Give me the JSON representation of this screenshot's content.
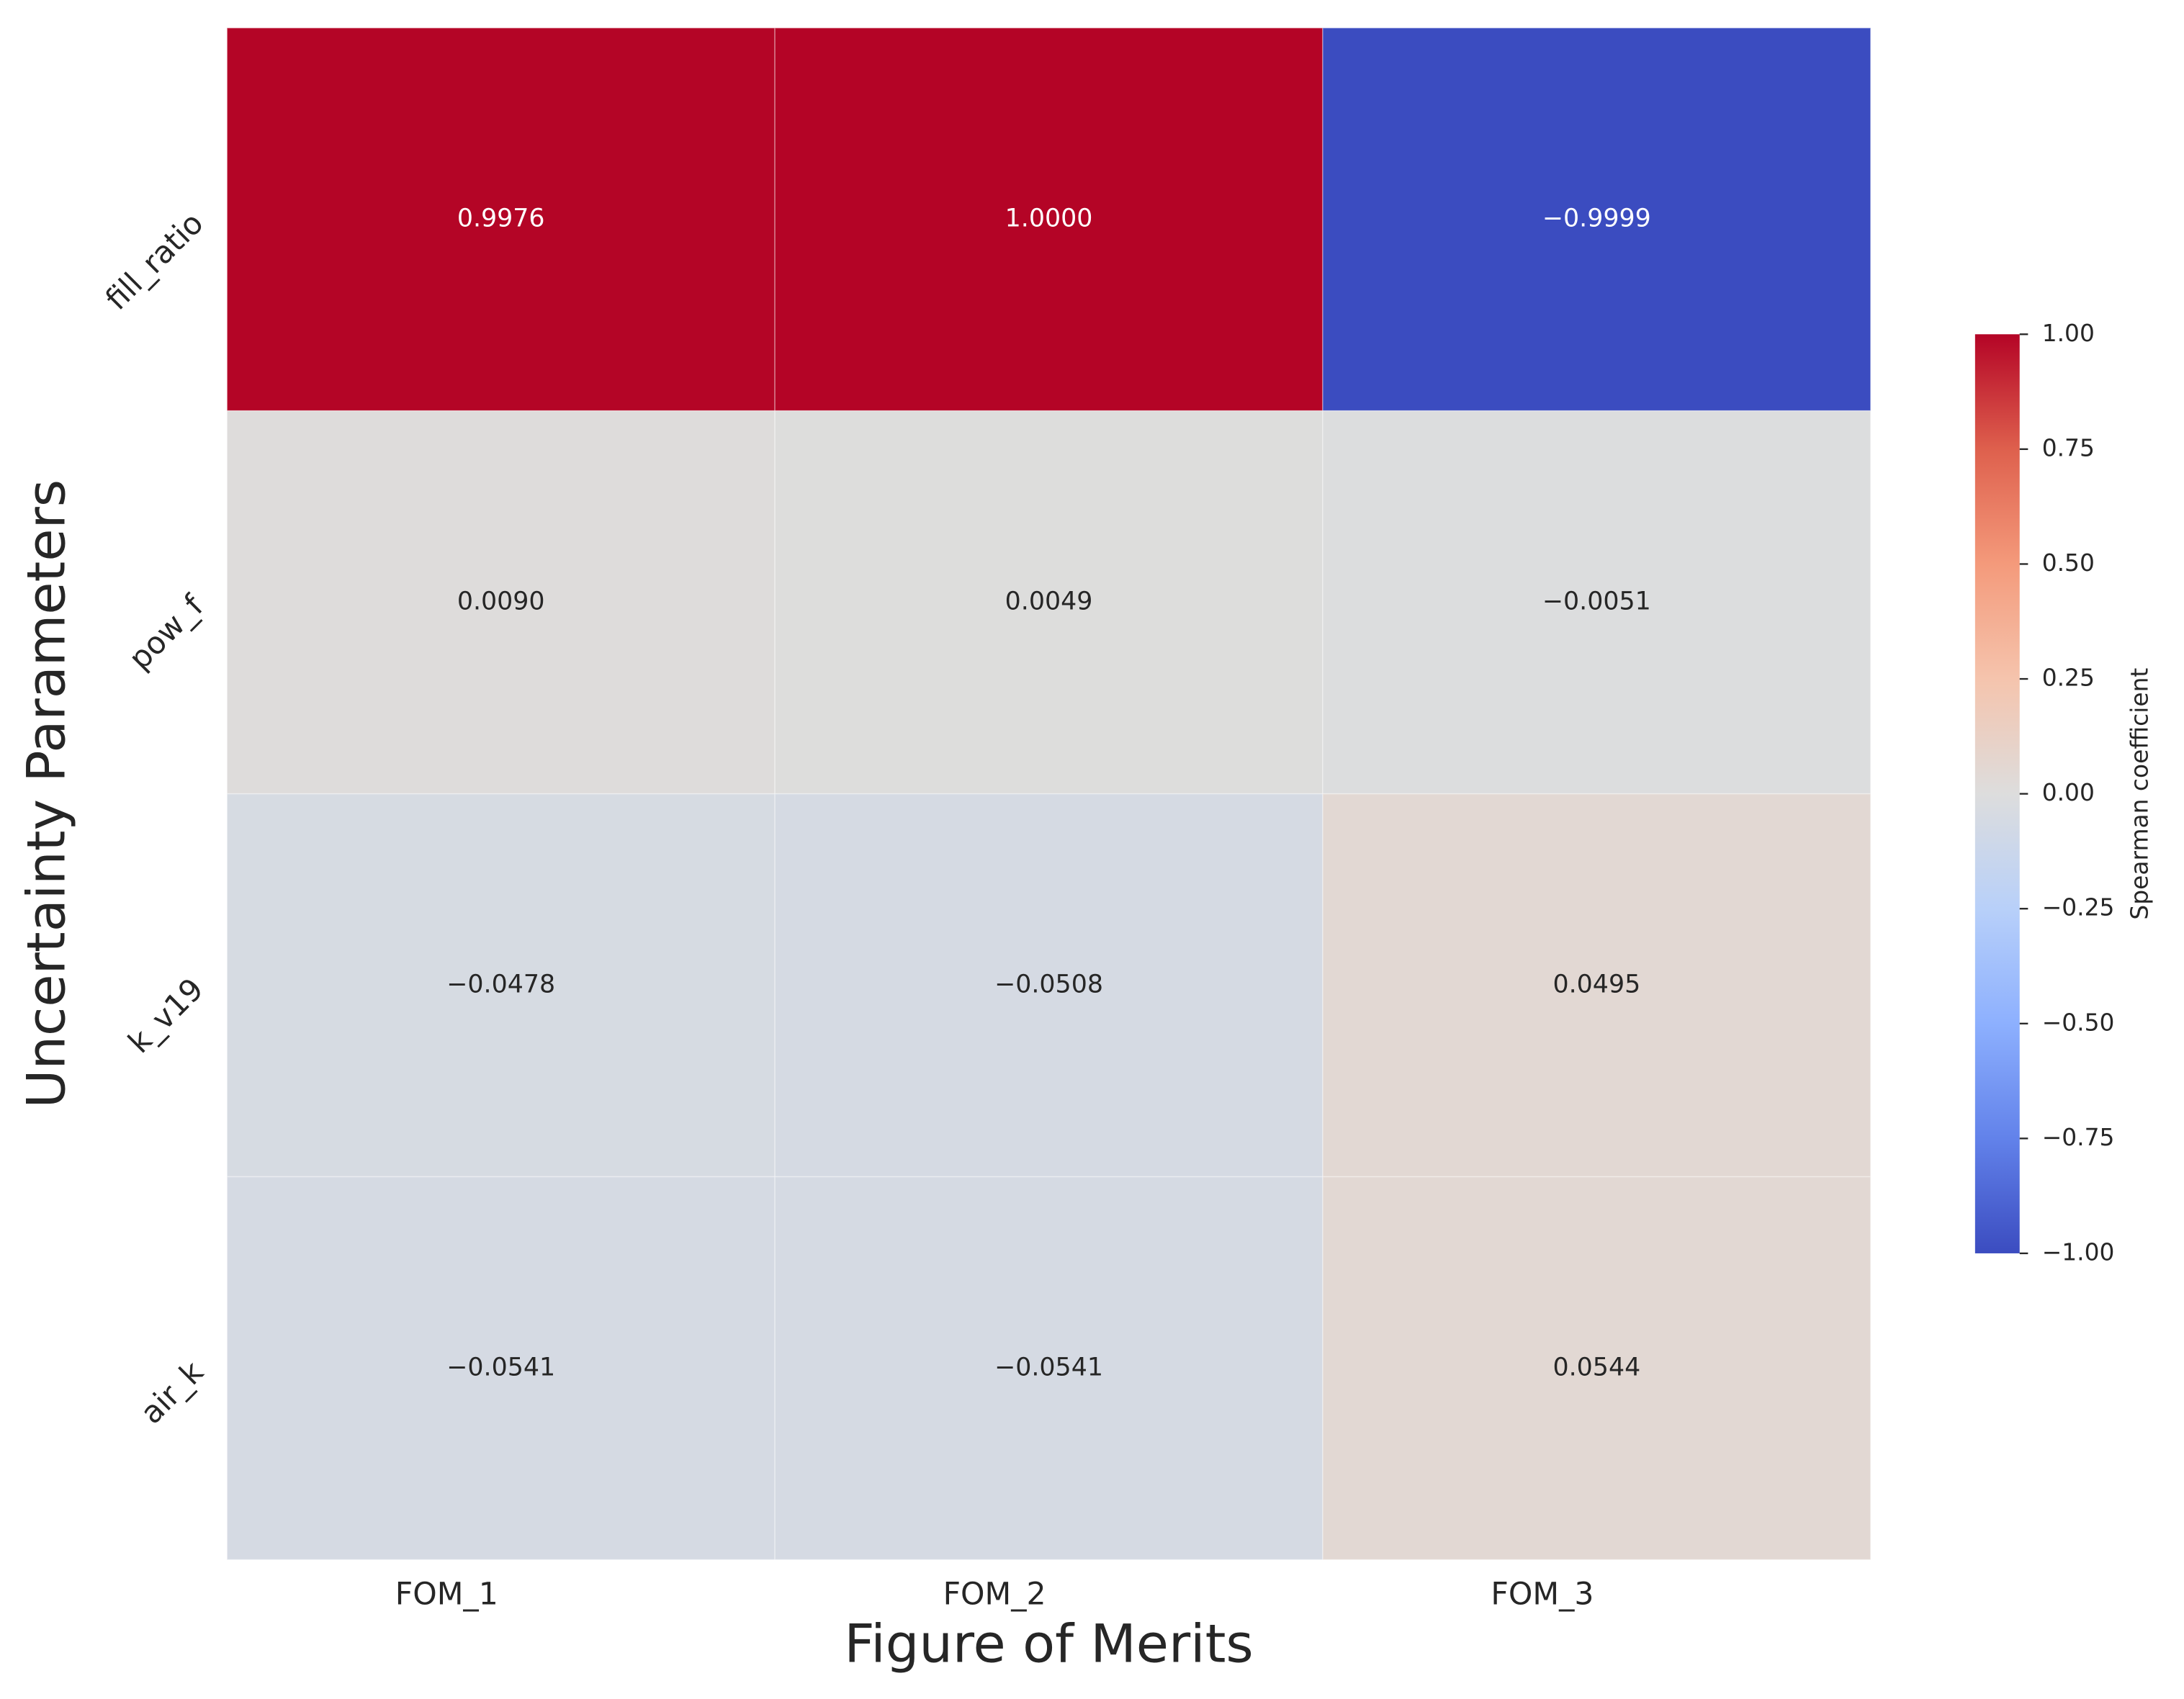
{
  "chart_data": {
    "type": "heatmap",
    "xlabel": "Figure of Merits",
    "ylabel": "Uncertainty Parameters",
    "columns": [
      "FOM_1",
      "FOM_2",
      "FOM_3"
    ],
    "rows": [
      "fill_ratio",
      "pow_f",
      "k_v19",
      "air_k"
    ],
    "values": [
      [
        0.9976,
        1.0,
        -0.9999
      ],
      [
        0.009,
        0.0049,
        -0.0051
      ],
      [
        -0.0478,
        -0.0508,
        0.0495
      ],
      [
        -0.0541,
        -0.0541,
        0.0544
      ]
    ],
    "value_labels": [
      [
        "0.9976",
        "1.0000",
        "−0.9999"
      ],
      [
        "0.0090",
        "0.0049",
        "−0.0051"
      ],
      [
        "−0.0478",
        "−0.0508",
        "0.0495"
      ],
      [
        "−0.0541",
        "−0.0541",
        "0.0544"
      ]
    ],
    "cmap": "coolwarm",
    "colorbar_label": "Spearman coefficient",
    "clim": [
      -1,
      1
    ],
    "cticks": [
      {
        "value": -1,
        "label": "−1.00"
      },
      {
        "value": -0.75,
        "label": "−0.75"
      },
      {
        "value": -0.5,
        "label": "−0.50"
      },
      {
        "value": -0.25,
        "label": "−0.25"
      },
      {
        "value": 0,
        "label": "0.00"
      },
      {
        "value": 0.25,
        "label": "0.25"
      },
      {
        "value": 0.5,
        "label": "0.50"
      },
      {
        "value": 0.75,
        "label": "0.75"
      },
      {
        "value": 1,
        "label": "1.00"
      }
    ]
  }
}
